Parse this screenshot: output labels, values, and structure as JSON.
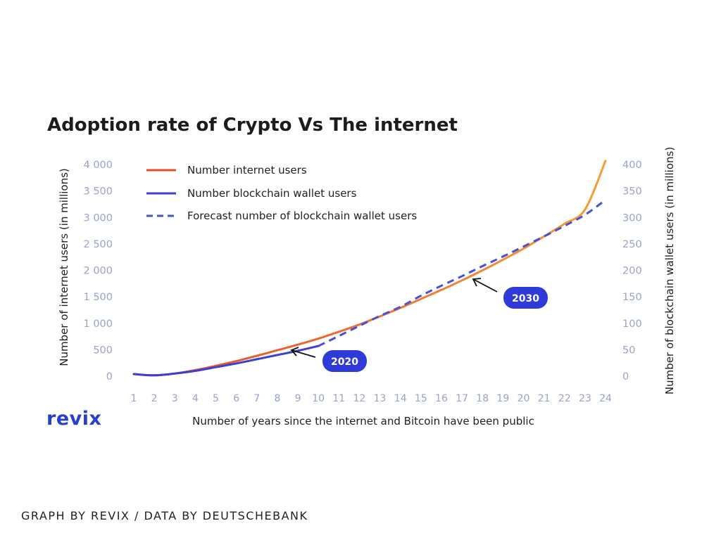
{
  "chart_data": {
    "type": "line",
    "title": "Adoption rate of Crypto Vs The internet",
    "xlabel": "Number of years since the internet and Bitcoin have been public",
    "ylabel_left": "Number of internet users (in millions)",
    "ylabel_right": "Number of blockchain wallet users (in millions)",
    "x": [
      1,
      2,
      3,
      4,
      5,
      6,
      7,
      8,
      9,
      10,
      11,
      12,
      13,
      14,
      15,
      16,
      17,
      18,
      19,
      20,
      21,
      22,
      23,
      24
    ],
    "x_tick_labels": [
      "1",
      "2",
      "3",
      "4",
      "5",
      "6",
      "7",
      "8",
      "9",
      "10",
      "11",
      "12",
      "13",
      "14",
      "15",
      "16",
      "17",
      "18",
      "19",
      "20",
      "21",
      "22",
      "23",
      "24"
    ],
    "ylim_left": [
      0,
      4000
    ],
    "ylim_right": [
      0,
      400
    ],
    "y_ticks_left": [
      "0",
      "500",
      "1 000",
      "1 500",
      "2 000",
      "2 500",
      "3 000",
      "3 500",
      "4 000"
    ],
    "y_ticks_right": [
      "0",
      "50",
      "100",
      "150",
      "200",
      "250",
      "300",
      "350",
      "400"
    ],
    "series": [
      {
        "name": "Number internet users",
        "axis": "left",
        "style": "solid",
        "colors": [
          "#e8452a",
          "#f5a035"
        ],
        "x": [
          1,
          2,
          3,
          4,
          5,
          6,
          7,
          8,
          9,
          10,
          11,
          12,
          13,
          14,
          15,
          16,
          17,
          18,
          19,
          20,
          21,
          22,
          23,
          24
        ],
        "values": [
          40,
          16,
          50,
          115,
          195,
          285,
          385,
          490,
          595,
          710,
          840,
          975,
          1130,
          1290,
          1460,
          1630,
          1810,
          2000,
          2200,
          2410,
          2640,
          2880,
          3150,
          4070
        ]
      },
      {
        "name": "Number blockchain wallet users",
        "axis": "right",
        "style": "solid",
        "colors": [
          "#3b3fd4"
        ],
        "x": [
          1,
          2,
          3,
          4,
          5,
          6,
          7,
          8,
          9,
          10
        ],
        "values": [
          4,
          1.6,
          5,
          10,
          17,
          24,
          32,
          40,
          48,
          57
        ]
      },
      {
        "name": "Forecast number of blockchain wallet users",
        "axis": "right",
        "style": "dashed",
        "colors": [
          "#4a4fd8"
        ],
        "x": [
          10,
          11,
          12,
          13,
          14,
          15,
          16,
          17,
          18,
          19,
          20,
          21,
          22,
          23,
          24
        ],
        "values": [
          57,
          76,
          95,
          114,
          131,
          152,
          171,
          189,
          208,
          226,
          245,
          264,
          284,
          305,
          333
        ]
      }
    ],
    "legend": [
      "Number internet users",
      "Number blockchain wallet users",
      "Forecast number of blockchain wallet users"
    ],
    "legend_position": "top-left",
    "annotations": [
      {
        "label": "2020",
        "x": 10,
        "y_right": 57
      },
      {
        "label": "2030",
        "x": 19,
        "y_right": 185
      }
    ],
    "grid": false
  },
  "brand": "revix",
  "credit": "GRAPH BY REVIX / DATA BY DEUTSCHEBANK",
  "colors": {
    "axis_text": "#9aa3c8",
    "brand": "#2741c8",
    "badge": "#2e3bd9"
  }
}
